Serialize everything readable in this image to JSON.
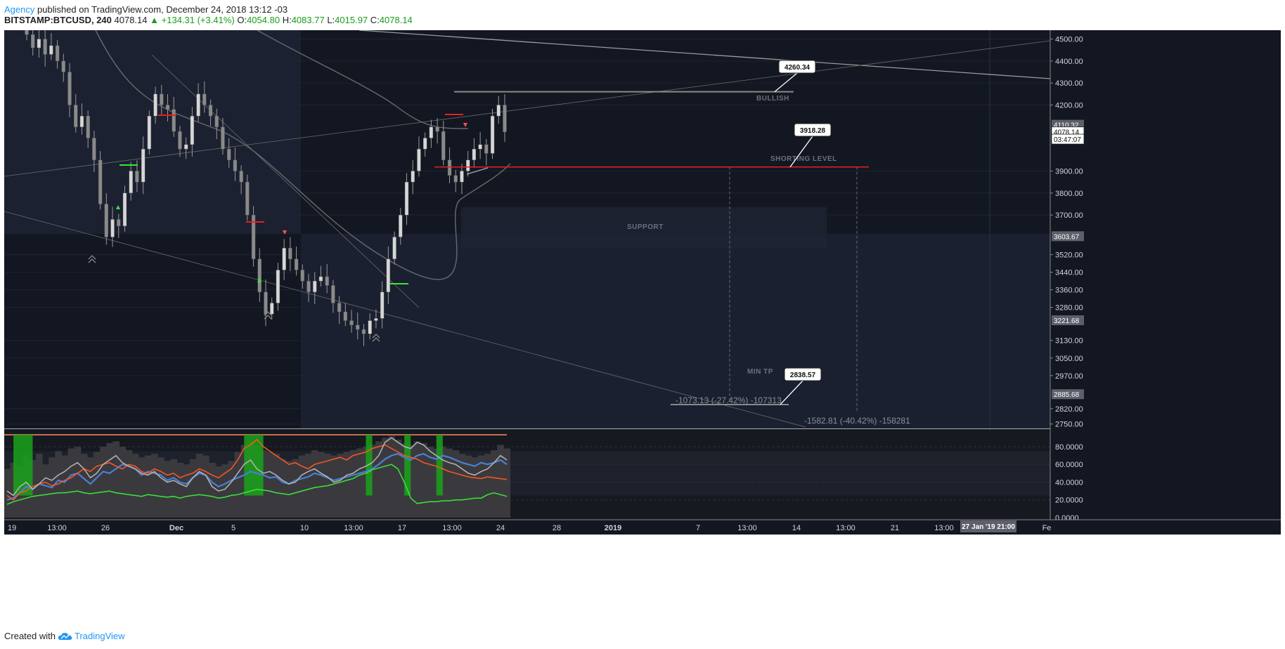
{
  "header": {
    "author": "Agency",
    "published_text": "published on TradingView.com, December 24, 2018 13:12 -03",
    "symbol": "BITSTAMP:BTCUSD, 240",
    "last": "4078.14",
    "change": "+134.31 (+3.41%)",
    "open_label": "O:",
    "open": "4054.80",
    "high_label": "H:",
    "high": "4083.77",
    "low_label": "L:",
    "low": "4015.97",
    "close_label": "C:",
    "close": "4078.14"
  },
  "footer": {
    "created_with": "Created with",
    "brand": "TradingView"
  },
  "colors": {
    "background": "#131722",
    "panel_bg": "#1a1f2e",
    "candle_up": "#c8c8c8",
    "candle_down": "#b0b0b0",
    "shorting_line": "#e91e1e",
    "axis_text": "#d1d4dc",
    "indicator_blue": "#4a7fd4",
    "indicator_orange": "#ff5722",
    "indicator_green": "#39e639",
    "indicator_gray": "#b5b5b5",
    "oscillator_fill": "#444448",
    "highlight_green": "#1aa31a"
  },
  "chart_data": [
    {
      "type": "line",
      "name": "price-pane",
      "title": "BITSTAMP:BTCUSD, 240",
      "y_ticks": [
        "4500.00",
        "4400.00",
        "4300.00",
        "4200.00",
        "3900.00",
        "3800.00",
        "3700.00",
        "3520.00",
        "3440.00",
        "3360.00",
        "3280.00",
        "3130.00",
        "3050.00",
        "2970.00",
        "2820.00",
        "2750.00"
      ],
      "price_labels": [
        {
          "value": 4110.32,
          "text": "4110.32",
          "style": "gray"
        },
        {
          "value": 4078.14,
          "text": "4078.14",
          "style": "white"
        },
        {
          "value": 4045,
          "text": "03:47:07",
          "style": "white"
        },
        {
          "value": 3603.67,
          "text": "3603.67",
          "style": "gray"
        },
        {
          "value": 3221.68,
          "text": "3221.68",
          "style": "gray"
        },
        {
          "value": 2885.68,
          "text": "2885.68",
          "style": "gray"
        }
      ],
      "x_ticks": [
        "19",
        "13:00",
        "26",
        "Dec",
        "5",
        "10",
        "13:00",
        "17",
        "13:00",
        "24",
        "28",
        "2019",
        "7",
        "13:00",
        "14",
        "13:00",
        "21",
        "13:00",
        "27 Jan '19  21:00",
        "Fe"
      ],
      "x_tick_bold": [
        "Dec",
        "2019"
      ],
      "ylim": [
        2730,
        4540
      ],
      "price_series_close": [
        4520,
        4460,
        4500,
        4430,
        4470,
        4400,
        4350,
        4200,
        4100,
        4150,
        4050,
        3950,
        3750,
        3600,
        3680,
        3650,
        3800,
        3900,
        3850,
        4000,
        4150,
        4250,
        4200,
        4180,
        4080,
        4000,
        4020,
        4150,
        4250,
        4200,
        4150,
        4100,
        4000,
        3950,
        3900,
        3850,
        3700,
        3500,
        3350,
        3250,
        3300,
        3450,
        3550,
        3500,
        3450,
        3400,
        3350,
        3400,
        3420,
        3380,
        3300,
        3260,
        3220,
        3200,
        3180,
        3160,
        3220,
        3230,
        3350,
        3500,
        3600,
        3700,
        3850,
        3900,
        4000,
        4050,
        4100,
        4080,
        3950,
        3880,
        3850,
        3900,
        3950,
        4000,
        4020,
        3980,
        4150,
        4200,
        4078
      ],
      "levels": [
        {
          "name": "bullish",
          "value": 4260.34,
          "label": "4260.34",
          "zone_text": "BULLISH"
        },
        {
          "name": "shorting",
          "value": 3918.28,
          "label": "3918.28",
          "zone_text": "SHORTING LEVEL"
        },
        {
          "name": "support",
          "zone_text": "SUPPORT",
          "from": 3440,
          "to": 3603.67
        },
        {
          "name": "min-tp",
          "value": 2838.57,
          "label": "2838.57",
          "zone_text": "MIN TP"
        }
      ],
      "measurements": [
        {
          "text": "-1073.13 (-27.42%) -107313"
        },
        {
          "text": "-1582.81 (-40.42%) -158281"
        }
      ]
    },
    {
      "type": "line",
      "name": "oscillator-pane",
      "y_ticks": [
        "80.0000",
        "60.0000",
        "40.0000",
        "20.0000",
        "0.0000"
      ],
      "ylim": [
        0,
        95
      ],
      "series": [
        {
          "color": "blue",
          "values": [
            20,
            22,
            28,
            35,
            32,
            38,
            36,
            34,
            42,
            40,
            48,
            50,
            44,
            38,
            45,
            52,
            50,
            55,
            60,
            58,
            55,
            48,
            52,
            50,
            48,
            42,
            45,
            40,
            38,
            45,
            50,
            48,
            40,
            35,
            38,
            42,
            45,
            48,
            52,
            50,
            48,
            45,
            46,
            40,
            38,
            42,
            44,
            46,
            50,
            48,
            45,
            42,
            44,
            46,
            48,
            50,
            52,
            55,
            60,
            66,
            70,
            72,
            68,
            65,
            70,
            72,
            68,
            66,
            70,
            68,
            65,
            62,
            60,
            58,
            62,
            60,
            62,
            65,
            60
          ]
        },
        {
          "color": "orange",
          "values": [
            25,
            20,
            28,
            30,
            35,
            38,
            40,
            36,
            38,
            42,
            45,
            50,
            55,
            52,
            58,
            60,
            62,
            58,
            55,
            60,
            58,
            52,
            50,
            55,
            52,
            48,
            50,
            45,
            48,
            50,
            55,
            52,
            48,
            45,
            50,
            55,
            65,
            78,
            82,
            88,
            80,
            75,
            70,
            65,
            60,
            62,
            58,
            55,
            60,
            62,
            64,
            66,
            68,
            65,
            70,
            72,
            74,
            78,
            80,
            82,
            78,
            74,
            70,
            68,
            66,
            62,
            60,
            58,
            55,
            52,
            50,
            48,
            46,
            45,
            44,
            46,
            45,
            44,
            43
          ]
        },
        {
          "color": "green",
          "values": [
            15,
            18,
            20,
            22,
            24,
            25,
            26,
            27,
            28,
            28,
            29,
            30,
            28,
            27,
            28,
            29,
            30,
            28,
            27,
            26,
            25,
            24,
            26,
            25,
            24,
            23,
            24,
            22,
            24,
            25,
            26,
            25,
            24,
            22,
            23,
            25,
            26,
            28,
            30,
            32,
            31,
            30,
            28,
            27,
            26,
            28,
            30,
            32,
            34,
            35,
            36,
            38,
            40,
            42,
            44,
            48,
            50,
            54,
            56,
            58,
            60,
            55,
            40,
            22,
            16,
            17,
            18,
            18,
            19,
            19,
            20,
            20,
            21,
            22,
            22,
            26,
            28,
            26,
            24
          ]
        },
        {
          "color": "gray",
          "values": [
            30,
            25,
            35,
            40,
            32,
            38,
            45,
            42,
            48,
            52,
            58,
            62,
            55,
            45,
            50,
            60,
            65,
            70,
            62,
            58,
            55,
            50,
            48,
            52,
            45,
            40,
            42,
            38,
            35,
            45,
            52,
            48,
            35,
            30,
            32,
            40,
            50,
            60,
            65,
            55,
            50,
            52,
            48,
            42,
            38,
            40,
            48,
            52,
            55,
            50,
            46,
            40,
            42,
            48,
            50,
            55,
            58,
            62,
            70,
            85,
            90,
            85,
            80,
            78,
            85,
            82,
            75,
            70,
            65,
            62,
            60,
            55,
            50,
            48,
            52,
            55,
            62,
            70,
            65
          ]
        }
      ],
      "histogram": [
        55,
        62,
        58,
        70,
        65,
        72,
        60,
        68,
        75,
        70,
        78,
        80,
        72,
        68,
        74,
        80,
        84,
        86,
        80,
        76,
        72,
        68,
        70,
        72,
        68,
        64,
        66,
        62,
        60,
        66,
        72,
        70,
        62,
        58,
        60,
        64,
        74,
        82,
        86,
        82,
        76,
        74,
        72,
        66,
        64,
        66,
        70,
        72,
        76,
        74,
        72,
        70,
        72,
        74,
        76,
        78,
        80,
        82,
        86,
        90,
        92,
        88,
        84,
        82,
        86,
        84,
        80,
        78,
        80,
        78,
        76,
        72,
        70,
        68,
        70,
        72,
        76,
        82,
        78
      ],
      "green_highlights": [
        [
          1,
          4
        ],
        [
          37,
          40
        ],
        [
          56,
          57
        ],
        [
          62,
          63
        ],
        [
          67,
          68
        ]
      ]
    }
  ]
}
